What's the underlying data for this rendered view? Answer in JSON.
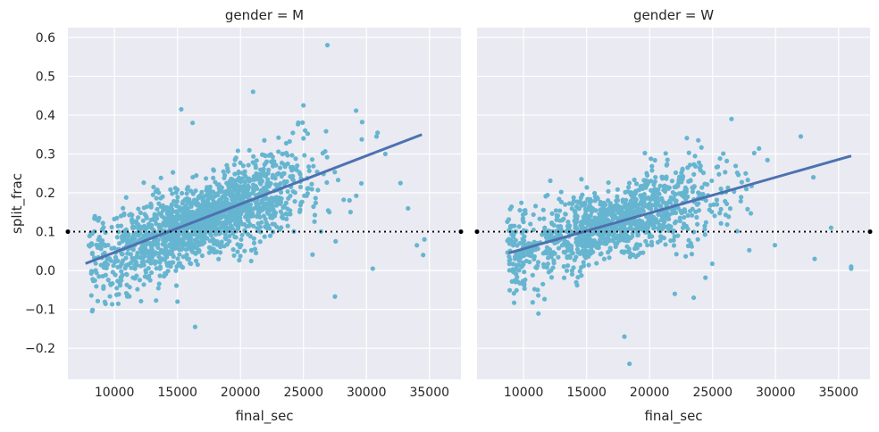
{
  "chart_data": {
    "type": "scatter",
    "facet_variable": "gender",
    "xlabel": "final_sec",
    "ylabel": "split_frac",
    "xlim": [
      6300,
      37500
    ],
    "ylim": [
      -0.28,
      0.625
    ],
    "xticks": [
      10000,
      15000,
      20000,
      25000,
      30000,
      35000
    ],
    "yticks": [
      -0.2,
      -0.1,
      0.0,
      0.1,
      0.2,
      0.3,
      0.4,
      0.5,
      0.6
    ],
    "xtick_labels": [
      "10000",
      "15000",
      "20000",
      "25000",
      "30000",
      "35000"
    ],
    "ytick_labels": [
      "−0.2",
      "−0.1",
      "0.0",
      "0.1",
      "0.2",
      "0.3",
      "0.4",
      "0.5",
      "0.6"
    ],
    "reference_line": {
      "y": 0.1,
      "style": "dotted",
      "color": "#000000"
    },
    "point_color": "#66b5d0",
    "line_color": "#4c72b0",
    "facets": [
      {
        "title": "gender = M",
        "regression": {
          "x": [
            7700,
            34400
          ],
          "y": [
            0.018,
            0.35
          ]
        },
        "cloud_x_range": [
          7800,
          31000
        ],
        "outliers": [
          {
            "x": 26900,
            "y": 0.58
          },
          {
            "x": 21000,
            "y": 0.46
          },
          {
            "x": 25000,
            "y": 0.425
          },
          {
            "x": 15300,
            "y": 0.415
          },
          {
            "x": 16200,
            "y": 0.38
          },
          {
            "x": 16400,
            "y": -0.145
          },
          {
            "x": 15000,
            "y": -0.08
          },
          {
            "x": 27500,
            "y": -0.067
          },
          {
            "x": 30800,
            "y": 0.345
          },
          {
            "x": 31500,
            "y": 0.3
          },
          {
            "x": 32700,
            "y": 0.225
          },
          {
            "x": 33300,
            "y": 0.16
          },
          {
            "x": 34000,
            "y": 0.065
          },
          {
            "x": 34600,
            "y": 0.08
          },
          {
            "x": 34500,
            "y": 0.04
          },
          {
            "x": 30500,
            "y": 0.005
          }
        ]
      },
      {
        "title": "gender = W",
        "regression": {
          "x": [
            8800,
            36000
          ],
          "y": [
            0.045,
            0.295
          ]
        },
        "cloud_x_range": [
          8700,
          30500
        ],
        "outliers": [
          {
            "x": 26500,
            "y": 0.39
          },
          {
            "x": 32000,
            "y": 0.345
          },
          {
            "x": 18000,
            "y": -0.17
          },
          {
            "x": 18400,
            "y": -0.24
          },
          {
            "x": 22000,
            "y": -0.06
          },
          {
            "x": 23500,
            "y": -0.07
          },
          {
            "x": 33100,
            "y": 0.03
          },
          {
            "x": 34400,
            "y": 0.11
          },
          {
            "x": 36000,
            "y": 0.005
          },
          {
            "x": 36000,
            "y": 0.01
          },
          {
            "x": 33000,
            "y": 0.24
          }
        ]
      }
    ]
  }
}
